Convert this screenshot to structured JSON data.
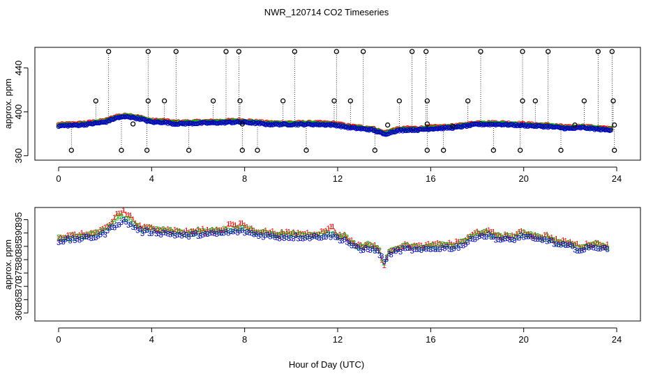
{
  "title": "NWR_120714  CO2 Timeseries",
  "xlabel": "Hour of Day (UTC)",
  "colors": {
    "series1": "#ff0000",
    "series2": "#00b000",
    "series3": "#0000cc",
    "outlier": "#000000",
    "highlight": "#00cccc"
  },
  "chart_data": [
    {
      "type": "scatter",
      "panel": "top",
      "ylabel": "approx. ppm",
      "xlim": [
        0,
        24
      ],
      "ylim": [
        360,
        455
      ],
      "x_ticks": [
        "0",
        "4",
        "8",
        "12",
        "16",
        "20",
        "24"
      ],
      "x_tick_values": [
        0,
        4,
        8,
        12,
        16,
        20,
        24
      ],
      "y_ticks": [
        "360",
        "400",
        "440"
      ],
      "y_tick_values": [
        360,
        400,
        440
      ],
      "baseline_profile": {
        "x": [
          0,
          1,
          2,
          2.5,
          3,
          3.5,
          4,
          4.5,
          5,
          6,
          7,
          7.5,
          8,
          9,
          10,
          11,
          11.8,
          12,
          12.5,
          13,
          13.5,
          14,
          14.5,
          15,
          15.5,
          16,
          17,
          18,
          19,
          20,
          20.5,
          21,
          21.5,
          22,
          22.5,
          23,
          23.5,
          23.8
        ],
        "y": [
          387.5,
          388.5,
          391,
          395,
          396,
          394,
          391,
          391,
          389.5,
          390,
          390.5,
          391,
          391,
          389,
          389,
          389,
          388.5,
          388,
          386,
          385,
          384,
          380,
          383,
          384,
          384,
          385,
          386,
          389,
          389,
          388,
          387.5,
          387,
          386,
          385,
          386,
          385,
          384,
          384
        ]
      },
      "outliers_high": {
        "x": [
          2.15,
          3.85,
          5.05,
          7.2,
          7.75,
          10.15,
          11.95,
          13.1,
          15.2,
          15.8,
          18.15,
          19.95,
          21.05,
          23.2,
          23.8
        ],
        "y": [
          455,
          455,
          455,
          455,
          455,
          455,
          455,
          455,
          455,
          455,
          455,
          455,
          455,
          455,
          455
        ]
      },
      "outliers_mid": {
        "x": [
          1.6,
          3.85,
          4.55,
          6.65,
          7.8,
          9.65,
          11.85,
          12.55,
          14.65,
          15.85,
          17.6,
          19.95,
          20.5,
          22.6,
          23.85
        ],
        "y": [
          410,
          410,
          410,
          410,
          410,
          410,
          410,
          410,
          410,
          410,
          410,
          410,
          410,
          410,
          410
        ]
      },
      "outliers_low": {
        "x": [
          0.55,
          2.7,
          3.8,
          5.6,
          7.9,
          8.55,
          10.65,
          13.6,
          15.85,
          16.55,
          18.7,
          19.85,
          21.6
        ],
        "y": [
          365,
          365,
          365,
          365,
          365,
          365,
          365,
          365,
          365,
          365,
          365,
          365,
          365
        ],
        "x_extra": [
          23.9
        ],
        "y_extra": [
          365
        ]
      },
      "outliers_baseline": {
        "x": [
          3.2,
          7.9,
          14.15,
          15.85,
          16.95,
          22.2,
          23.9
        ],
        "y": [
          389,
          389,
          388,
          389,
          387,
          388,
          388
        ]
      }
    },
    {
      "type": "scatter",
      "panel": "bottom",
      "ylabel": "approx. ppm",
      "xlim": [
        0,
        24
      ],
      "ylim": [
        357,
        398
      ],
      "x_ticks": [
        "0",
        "4",
        "8",
        "12",
        "16",
        "20",
        "24"
      ],
      "x_tick_values": [
        0,
        4,
        8,
        12,
        16,
        20,
        24
      ],
      "y_ticks": [
        "360",
        "365",
        "370",
        "375",
        "380",
        "385",
        "390",
        "395"
      ],
      "y_tick_values": [
        360,
        365,
        370,
        375,
        380,
        385,
        390,
        395
      ],
      "series": [
        {
          "name": "1",
          "symbol": "1",
          "color": "#ff0000",
          "offset": 1.0,
          "peaks": {
            "x": [
              2.5,
              2.8,
              3.1,
              7.4,
              7.9,
              11.7,
              14.0
            ],
            "dy": [
              2.5,
              2.5,
              2.0,
              2.0,
              2.0,
              2.5,
              -4.0
            ]
          }
        },
        {
          "name": "2",
          "symbol": "2",
          "color": "#00b000",
          "offset": 0.5,
          "peaks": {
            "x": [
              2.6,
              3.0,
              14.0
            ],
            "dy": [
              1.0,
              1.0,
              -2.0
            ]
          }
        },
        {
          "name": "3",
          "symbol": "3",
          "color": "#0000cc",
          "offset": -0.5,
          "peaks": {
            "x": [
              14.0
            ],
            "dy": [
              -1.0
            ]
          }
        }
      ],
      "profile": {
        "x": [
          0,
          0.5,
          1,
          1.5,
          2,
          2.5,
          2.8,
          3,
          3.3,
          3.6,
          4,
          4.5,
          5,
          5.5,
          6,
          6.5,
          7,
          7.5,
          8,
          8.5,
          9,
          9.5,
          10,
          10.5,
          11,
          11.5,
          11.8,
          12,
          12.3,
          12.6,
          13,
          13.3,
          13.6,
          13.8,
          14,
          14.3,
          14.6,
          15,
          15.5,
          16,
          16.5,
          17,
          17.5,
          18,
          18.5,
          19,
          19.5,
          20,
          20.5,
          21,
          21.5,
          22,
          22.5,
          23,
          23.5,
          23.7
        ],
        "y": [
          387.5,
          388,
          388.5,
          389,
          390.5,
          394,
          395,
          394,
          392.5,
          391,
          391,
          390.5,
          390,
          389.5,
          390,
          390,
          390.5,
          391,
          391,
          390,
          389.5,
          389,
          389,
          389,
          389,
          389.5,
          389.5,
          388.5,
          388,
          386,
          384,
          385,
          384,
          383,
          381,
          383,
          384,
          384.5,
          384,
          384.5,
          385,
          385,
          386.5,
          389.5,
          389.5,
          388,
          388,
          389.5,
          388,
          388,
          386,
          385.5,
          384,
          385.5,
          384.5,
          384
        ]
      }
    }
  ]
}
